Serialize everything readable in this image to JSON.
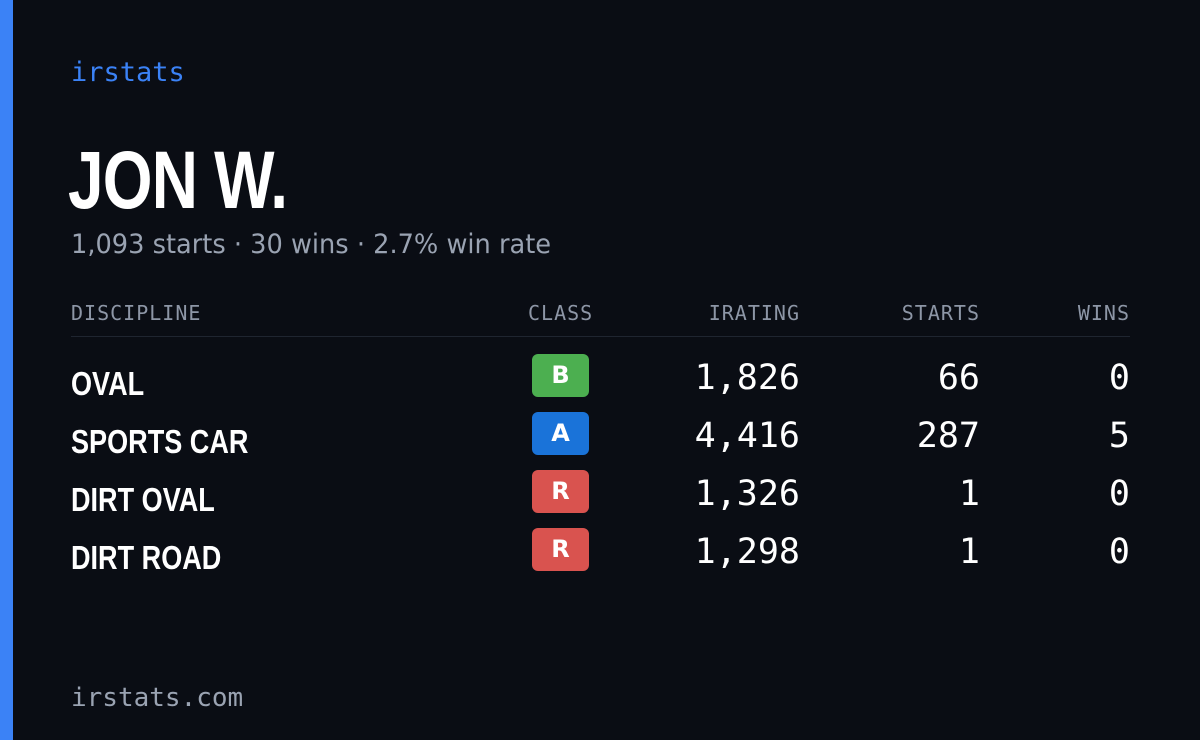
{
  "brand": "irstats",
  "driver": {
    "name": "JON W.",
    "summary": "1,093 starts · 30 wins · 2.7% win rate"
  },
  "table": {
    "headers": {
      "discipline": "DISCIPLINE",
      "class": "CLASS",
      "irating": "IRATING",
      "starts": "STARTS",
      "wins": "WINS"
    },
    "rows": [
      {
        "discipline": "OVAL",
        "class": "B",
        "class_color": "#4caf50",
        "irating": "1,826",
        "starts": "66",
        "wins": "0"
      },
      {
        "discipline": "SPORTS CAR",
        "class": "A",
        "class_color": "#1a73d9",
        "irating": "4,416",
        "starts": "287",
        "wins": "5"
      },
      {
        "discipline": "DIRT OVAL",
        "class": "R",
        "class_color": "#d9534f",
        "irating": "1,326",
        "starts": "1",
        "wins": "0"
      },
      {
        "discipline": "DIRT ROAD",
        "class": "R",
        "class_color": "#d9534f",
        "irating": "1,298",
        "starts": "1",
        "wins": "0"
      }
    ]
  },
  "footer": "irstats.com",
  "colors": {
    "accent": "#3b82f6",
    "background": "#0a0d14"
  }
}
